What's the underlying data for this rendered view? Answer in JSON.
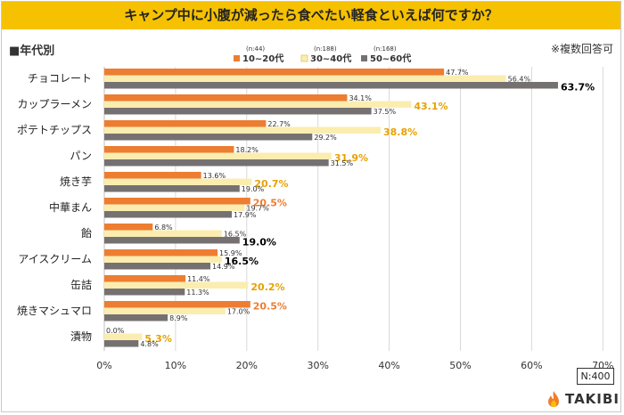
{
  "title": "キャンプ中に小腹が減ったら食べたい軽食といえば何ですか？",
  "subtitle": "■年代別",
  "note": "※複数回答可",
  "sample": "N:400",
  "brand": "TAKIBI",
  "chart_data": {
    "type": "bar",
    "orientation": "horizontal",
    "categories": [
      "チョコレート",
      "カップラーメン",
      "ポテトチップス",
      "パン",
      "焼き芋",
      "中華まん",
      "飴",
      "アイスクリーム",
      "缶詰",
      "焼きマシュマロ",
      "漬物"
    ],
    "series": [
      {
        "name": "10~20代",
        "n_label": "(n:44)",
        "color": "#ed7d31",
        "values": [
          47.7,
          34.1,
          22.7,
          18.2,
          13.6,
          20.5,
          6.8,
          15.9,
          11.4,
          20.5,
          0.0
        ]
      },
      {
        "name": "30~40代",
        "n_label": "(n:188)",
        "color": "#fbedb0",
        "values": [
          56.4,
          43.1,
          38.8,
          31.9,
          20.7,
          19.7,
          16.5,
          16.5,
          20.2,
          17.0,
          5.3
        ]
      },
      {
        "name": "50~60代",
        "n_label": "(n:168)",
        "color": "#767171",
        "values": [
          63.7,
          37.5,
          29.2,
          31.5,
          19.0,
          17.9,
          19.0,
          14.9,
          11.3,
          8.9,
          4.8
        ]
      }
    ],
    "highlight": [
      [
        null,
        "#e6a200",
        "bold",
        null
      ],
      [
        null,
        null,
        null,
        null
      ]
    ],
    "highlights": [
      {
        "category": 0,
        "series": 2,
        "color": "#000000"
      },
      {
        "category": 1,
        "series": 1,
        "color": "#e6a200"
      },
      {
        "category": 2,
        "series": 1,
        "color": "#e6a200"
      },
      {
        "category": 3,
        "series": 1,
        "color": "#e6a200"
      },
      {
        "category": 4,
        "series": 1,
        "color": "#e6a200"
      },
      {
        "category": 5,
        "series": 0,
        "color": "#ed7d31"
      },
      {
        "category": 6,
        "series": 2,
        "color": "#000000"
      },
      {
        "category": 7,
        "series": 1,
        "color": "#000000"
      },
      {
        "category": 8,
        "series": 1,
        "color": "#e6a200"
      },
      {
        "category": 9,
        "series": 0,
        "color": "#ed7d31"
      },
      {
        "category": 10,
        "series": 1,
        "color": "#e6a200"
      }
    ],
    "x_ticks": [
      "0%",
      "10%",
      "20%",
      "30%",
      "40%",
      "50%",
      "60%",
      "70%"
    ],
    "xlim": [
      0,
      70
    ],
    "grid": true,
    "legend": "top"
  }
}
